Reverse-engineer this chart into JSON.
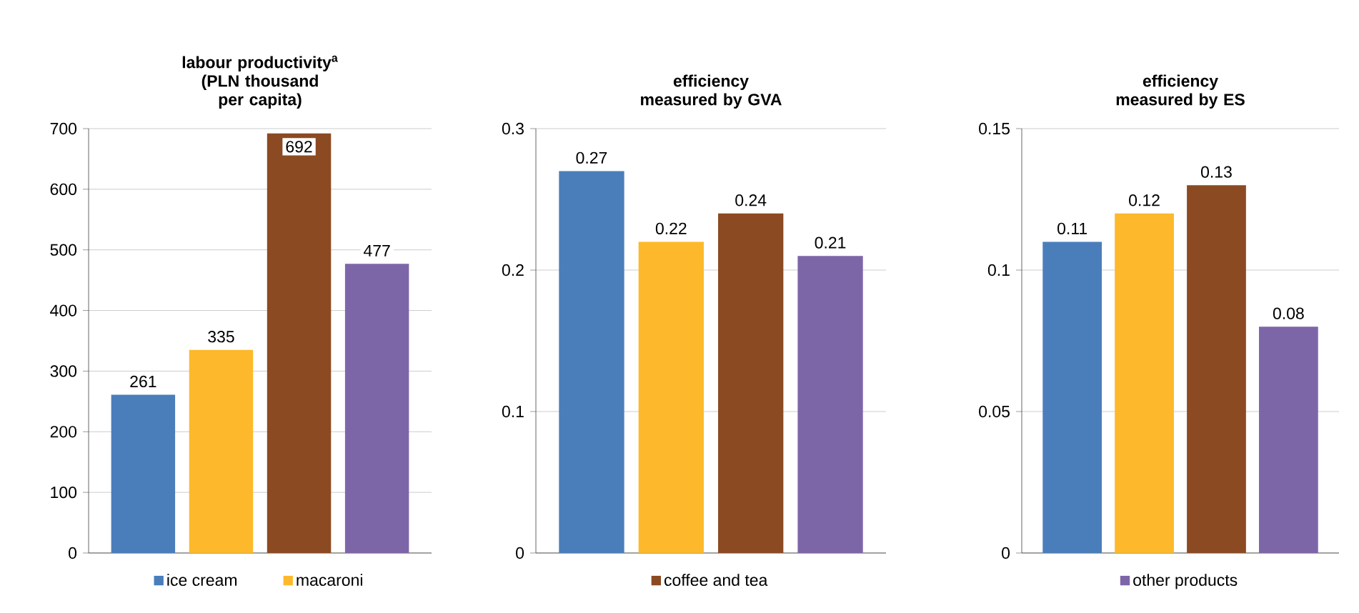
{
  "chart_data": [
    {
      "type": "bar",
      "title": "labour productivity$^{a}$ (PLN thousand per capita)",
      "categories": [
        null
      ],
      "series": [
        {
          "name": "ice cream",
          "color": "#4a7ebb",
          "values": [
            261
          ]
        },
        {
          "name": "macaroni",
          "color": "#fdb92b",
          "values": [
            335
          ]
        },
        {
          "color": "#8b4a22",
          "values": [
            692
          ]
        },
        {
          "color": "#7d66a8",
          "values": [
            477
          ]
        }
      ],
      "ylim": [
        0,
        700
      ],
      "yticks": [
        0,
        100,
        200,
        300,
        400,
        500,
        600,
        700
      ],
      "grid": "y",
      "legend": "bottom",
      "data_labels": true
    },
    {
      "type": "bar",
      "title": "efficiency measured by GVA",
      "categories": [
        null
      ],
      "series": [
        {
          "color": "#4a7ebb",
          "values": [
            0.27
          ]
        },
        {
          "color": "#fdb92b",
          "values": [
            0.22
          ]
        },
        {
          "name": "coffee and tea",
          "color": "#8b4a22",
          "values": [
            0.24
          ]
        },
        {
          "color": "#7d66a8",
          "values": [
            0.21
          ]
        }
      ],
      "ylim": [
        0,
        0.3
      ],
      "yticks": [
        0,
        0.1,
        0.2,
        0.3
      ],
      "grid": "y",
      "legend": "bottom",
      "data_labels": true
    },
    {
      "type": "bar",
      "title": "efficiency measured by ES",
      "categories": [
        null
      ],
      "series": [
        {
          "color": "#4a7ebb",
          "values": [
            0.11
          ]
        },
        {
          "color": "#fdb92b",
          "values": [
            0.12
          ]
        },
        {
          "color": "#8b4a22",
          "values": [
            0.13
          ]
        },
        {
          "name": "other products",
          "color": "#7d66a8",
          "values": [
            0.08
          ]
        }
      ],
      "ylim": [
        0,
        0.15
      ],
      "yticks": [
        0,
        0.05,
        0.1,
        0.15
      ],
      "grid": "y",
      "legend": "bottom",
      "data_labels": true
    }
  ]
}
